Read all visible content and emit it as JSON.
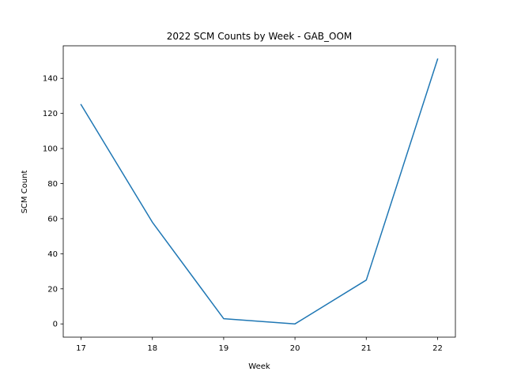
{
  "chart_data": {
    "type": "line",
    "title": "2022 SCM Counts by Week - GAB_OOM",
    "xlabel": "Week",
    "ylabel": "SCM Count",
    "x": [
      17,
      18,
      19,
      20,
      21,
      22
    ],
    "series": [
      {
        "values": [
          125,
          58,
          3,
          0,
          25,
          151
        ],
        "color": "#1f77b4"
      }
    ],
    "xticks": [
      "17",
      "18",
      "19",
      "20",
      "21",
      "22"
    ],
    "yticks": [
      "0",
      "20",
      "40",
      "60",
      "80",
      "100",
      "120",
      "140"
    ],
    "xlim": [
      16.75,
      22.25
    ],
    "ylim": [
      -7.55,
      158.55
    ],
    "grid": false,
    "legend": "none"
  }
}
